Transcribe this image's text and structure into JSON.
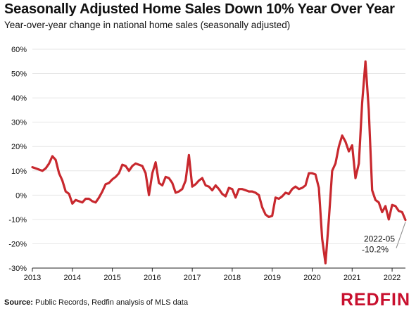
{
  "header": {
    "title": "Seasonally Adjusted Home Sales Down 10% Year Over Year",
    "subtitle": "Year-over-year change in national home sales (seasonally adjusted)"
  },
  "footer": {
    "source_label": "Source:",
    "source_text": " Public Records, Redfin analysis of MLS data",
    "brand": "REDFIN"
  },
  "colors": {
    "line": "#c8282e",
    "brand": "#c8102e",
    "gridline": "#e6e6e6"
  },
  "chart_data": {
    "type": "line",
    "title": "Seasonally Adjusted Home Sales Down 10% Year Over Year",
    "subtitle": "Year-over-year change in national home sales (seasonally adjusted)",
    "xlabel": "",
    "ylabel": "",
    "ylim": [
      -30,
      60
    ],
    "xlim": [
      "2013-01",
      "2022-05"
    ],
    "grid": "horizontal",
    "y_ticks": [
      60,
      50,
      40,
      30,
      20,
      10,
      0,
      -10,
      -20,
      -30
    ],
    "y_tick_labels": [
      "60%",
      "50%",
      "40%",
      "30%",
      "20%",
      "10%",
      "0%",
      "-10%",
      "-20%",
      "-30%"
    ],
    "x_ticks": [
      "2013",
      "2014",
      "2015",
      "2016",
      "2017",
      "2018",
      "2019",
      "2020",
      "2021",
      "2022"
    ],
    "annotation": {
      "x": "2022-05",
      "line1": "2022-05",
      "line2": "-10.2%"
    },
    "series": [
      {
        "x": [
          "2013-01",
          "2013-02",
          "2013-03",
          "2013-04",
          "2013-05",
          "2013-06",
          "2013-07",
          "2013-08",
          "2013-09",
          "2013-10",
          "2013-11",
          "2013-12",
          "2014-01",
          "2014-02",
          "2014-03",
          "2014-04",
          "2014-05",
          "2014-06",
          "2014-07",
          "2014-08",
          "2014-09",
          "2014-10",
          "2014-11",
          "2014-12",
          "2015-01",
          "2015-02",
          "2015-03",
          "2015-04",
          "2015-05",
          "2015-06",
          "2015-07",
          "2015-08",
          "2015-09",
          "2015-10",
          "2015-11",
          "2015-12",
          "2016-01",
          "2016-02",
          "2016-03",
          "2016-04",
          "2016-05",
          "2016-06",
          "2016-07",
          "2016-08",
          "2016-09",
          "2016-10",
          "2016-11",
          "2016-12",
          "2017-01",
          "2017-02",
          "2017-03",
          "2017-04",
          "2017-05",
          "2017-06",
          "2017-07",
          "2017-08",
          "2017-09",
          "2017-10",
          "2017-11",
          "2017-12",
          "2018-01",
          "2018-02",
          "2018-03",
          "2018-04",
          "2018-05",
          "2018-06",
          "2018-07",
          "2018-08",
          "2018-09",
          "2018-10",
          "2018-11",
          "2018-12",
          "2019-01",
          "2019-02",
          "2019-03",
          "2019-04",
          "2019-05",
          "2019-06",
          "2019-07",
          "2019-08",
          "2019-09",
          "2019-10",
          "2019-11",
          "2019-12",
          "2020-01",
          "2020-02",
          "2020-03",
          "2020-04",
          "2020-05",
          "2020-06",
          "2020-07",
          "2020-08",
          "2020-09",
          "2020-10",
          "2020-11",
          "2020-12",
          "2021-01",
          "2021-02",
          "2021-03",
          "2021-04",
          "2021-05",
          "2021-06",
          "2021-07",
          "2021-08",
          "2021-09",
          "2021-10",
          "2021-11",
          "2021-12",
          "2022-01",
          "2022-02",
          "2022-03",
          "2022-04",
          "2022-05"
        ],
        "values": [
          11.5,
          11,
          10.5,
          10,
          11,
          13,
          16,
          14.5,
          9,
          6,
          1.5,
          0.5,
          -3.5,
          -2,
          -2.5,
          -3,
          -1.5,
          -1.5,
          -2.5,
          -3,
          -1,
          1.5,
          4.5,
          5,
          6.5,
          7.5,
          9,
          12.5,
          12,
          10,
          12,
          13,
          12.5,
          12,
          9,
          0,
          9,
          13.5,
          5,
          4,
          7.5,
          7,
          5,
          1,
          1.5,
          2.5,
          6,
          16.5,
          3.5,
          4.5,
          6,
          7,
          4,
          3.5,
          2,
          4,
          2.5,
          0.5,
          -0.5,
          3,
          2.5,
          -1,
          2.5,
          2.5,
          2,
          1.5,
          1.5,
          1,
          0,
          -5,
          -8,
          -9,
          -8.5,
          -1,
          -1.5,
          -0.5,
          1,
          0.5,
          2.5,
          3.5,
          2.5,
          3,
          4,
          9,
          9,
          8.5,
          3,
          -18,
          -28,
          -10,
          10,
          13,
          20,
          24.5,
          22,
          18,
          20.5,
          7,
          13,
          38,
          55,
          35,
          2,
          -2,
          -3,
          -7,
          -4.5,
          -10,
          -4,
          -4.5,
          -6.5,
          -7,
          -10.2
        ]
      }
    ]
  }
}
